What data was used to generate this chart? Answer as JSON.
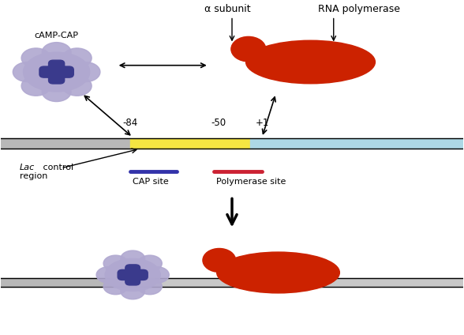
{
  "bg_color": "#ffffff",
  "cap_site_color": "#f5e642",
  "polymerase_site_color": "#add8e6",
  "rna_pol_red": "#cc2200",
  "camp_cap_main": "#b0a8d0",
  "camp_cap_dark": "#3a3a8c",
  "labels": {
    "camp_cap": "cAMP-CAP",
    "alpha_subunit": "α subunit",
    "rna_polymerase": "RNA polymerase",
    "cap_site": "CAP site",
    "polymerase_site": "Polymerase site",
    "minus84": "-84",
    "minus50": "-50",
    "plus1": "+1"
  }
}
